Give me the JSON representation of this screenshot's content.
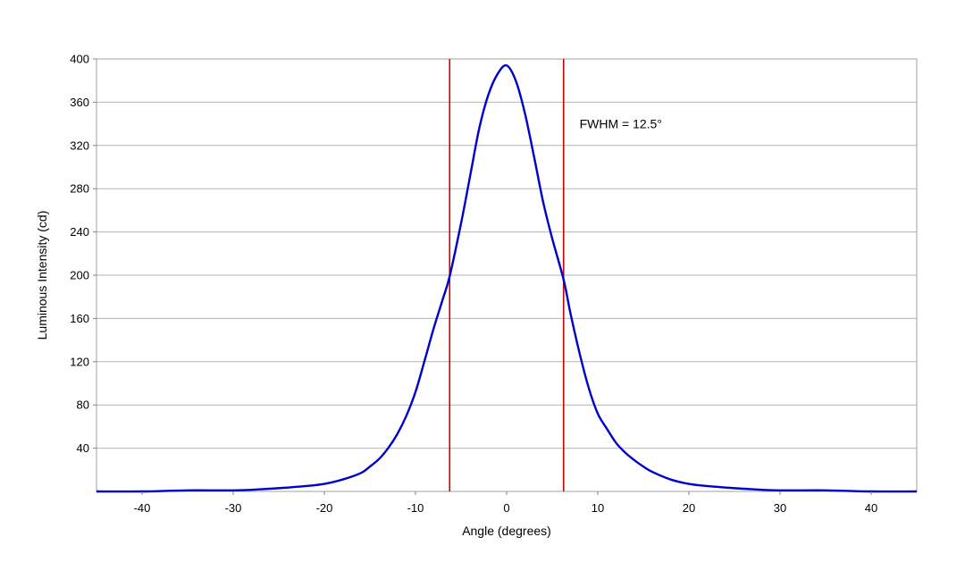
{
  "chart_data": {
    "type": "line",
    "title": "",
    "xlabel": "Angle (degrees)",
    "ylabel": "Luminous Intensity (cd)",
    "xlim": [
      -45,
      45
    ],
    "ylim": [
      0,
      400
    ],
    "x_ticks": [
      -40,
      -30,
      -20,
      -10,
      0,
      10,
      20,
      30,
      40
    ],
    "y_ticks": [
      40,
      80,
      120,
      160,
      200,
      240,
      280,
      320,
      360,
      400
    ],
    "grid": "horizontal",
    "series": [
      {
        "color": "#0000cc",
        "x": [
          -45,
          -40,
          -35,
          -30,
          -27,
          -25,
          -22,
          -20,
          -18,
          -16,
          -15,
          -14,
          -13,
          -12,
          -11,
          -10,
          -9,
          -8,
          -7,
          -6.25,
          -5,
          -4,
          -3,
          -2,
          -1,
          0,
          1,
          2,
          3,
          4,
          5,
          6.25,
          7,
          8,
          9,
          10,
          11,
          12,
          13,
          14,
          15,
          16,
          18,
          20,
          22,
          25,
          27,
          30,
          35,
          40,
          45
        ],
        "y": [
          0,
          0,
          1,
          1,
          2,
          3,
          5,
          7,
          11,
          17,
          23,
          30,
          40,
          53,
          70,
          92,
          121,
          151,
          178,
          199,
          248,
          292,
          336,
          367,
          386,
          394,
          380,
          350,
          310,
          268,
          234,
          196,
          165,
          128,
          96,
          72,
          58,
          45,
          36,
          29,
          23,
          18,
          11,
          7,
          5,
          3,
          2,
          1,
          1,
          0,
          0
        ]
      }
    ],
    "reference_lines": [
      {
        "x": -6.25,
        "color": "#cc0000"
      },
      {
        "x": 6.25,
        "color": "#cc0000"
      }
    ],
    "annotations": [
      {
        "text": "FWHM = 12.5°",
        "x": 8,
        "y": 340
      }
    ]
  }
}
